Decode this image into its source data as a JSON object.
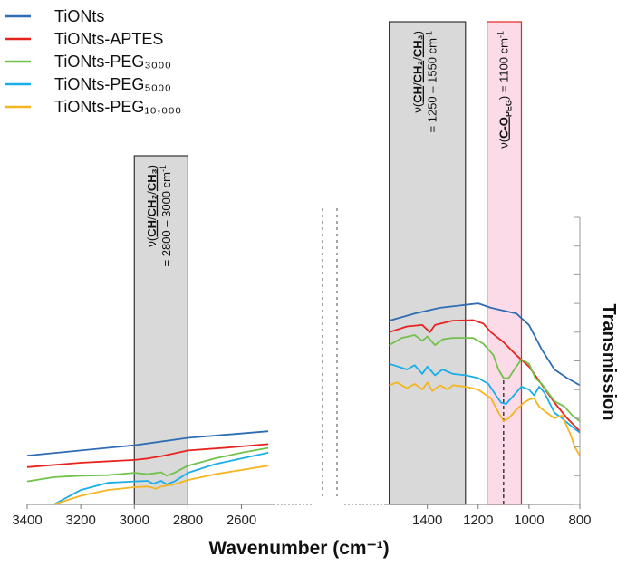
{
  "chart_data": {
    "type": "line",
    "title": "",
    "xlabel": "Wavenumber (cm⁻¹)",
    "ylabel": "Transmission",
    "x_axis_reversed": true,
    "x_axis_broken": true,
    "panels": [
      {
        "name": "left",
        "xlim": [
          3400,
          2480
        ],
        "xticks": [
          3400,
          3200,
          3000,
          2800,
          2600
        ]
      },
      {
        "name": "right",
        "xlim": [
          1570,
          800
        ],
        "xticks": [
          1400,
          1200,
          1000,
          800
        ]
      }
    ],
    "series": [
      {
        "name": "TiONts",
        "color": "#2e6db4",
        "left": [
          [
            3400,
            0.17
          ],
          [
            3200,
            0.188
          ],
          [
            3000,
            0.206
          ],
          [
            2800,
            0.232
          ],
          [
            2500,
            0.255
          ]
        ],
        "right": [
          [
            1550,
            0.64
          ],
          [
            1450,
            0.665
          ],
          [
            1350,
            0.685
          ],
          [
            1250,
            0.695
          ],
          [
            1200,
            0.7
          ],
          [
            1150,
            0.685
          ],
          [
            1050,
            0.665
          ],
          [
            1000,
            0.625
          ],
          [
            950,
            0.54
          ],
          [
            900,
            0.47
          ],
          [
            850,
            0.44
          ],
          [
            800,
            0.415
          ]
        ]
      },
      {
        "name": "TiONts-APTES",
        "color": "#e8231f",
        "left": [
          [
            3400,
            0.13
          ],
          [
            3200,
            0.145
          ],
          [
            3000,
            0.155
          ],
          [
            2950,
            0.16
          ],
          [
            2900,
            0.168
          ],
          [
            2850,
            0.178
          ],
          [
            2800,
            0.188
          ],
          [
            2650,
            0.198
          ],
          [
            2500,
            0.21
          ]
        ],
        "right": [
          [
            1550,
            0.6
          ],
          [
            1480,
            0.62
          ],
          [
            1420,
            0.625
          ],
          [
            1390,
            0.6
          ],
          [
            1370,
            0.625
          ],
          [
            1300,
            0.64
          ],
          [
            1220,
            0.642
          ],
          [
            1180,
            0.63
          ],
          [
            1150,
            0.6
          ],
          [
            1100,
            0.565
          ],
          [
            1050,
            0.52
          ],
          [
            1000,
            0.48
          ],
          [
            960,
            0.43
          ],
          [
            900,
            0.355
          ],
          [
            850,
            0.3
          ],
          [
            800,
            0.255
          ]
        ]
      },
      {
        "name": "TiONts-PEG₃₀₀₀",
        "color": "#70c24a",
        "left": [
          [
            3400,
            0.08
          ],
          [
            3300,
            0.095
          ],
          [
            3200,
            0.1
          ],
          [
            3100,
            0.102
          ],
          [
            3000,
            0.11
          ],
          [
            2950,
            0.105
          ],
          [
            2900,
            0.112
          ],
          [
            2880,
            0.1
          ],
          [
            2850,
            0.11
          ],
          [
            2800,
            0.135
          ],
          [
            2700,
            0.16
          ],
          [
            2600,
            0.18
          ],
          [
            2500,
            0.197
          ]
        ],
        "right": [
          [
            1550,
            0.555
          ],
          [
            1500,
            0.58
          ],
          [
            1450,
            0.59
          ],
          [
            1420,
            0.57
          ],
          [
            1400,
            0.585
          ],
          [
            1370,
            0.555
          ],
          [
            1340,
            0.575
          ],
          [
            1300,
            0.58
          ],
          [
            1220,
            0.58
          ],
          [
            1180,
            0.56
          ],
          [
            1140,
            0.52
          ],
          [
            1120,
            0.47
          ],
          [
            1100,
            0.44
          ],
          [
            1080,
            0.44
          ],
          [
            1050,
            0.48
          ],
          [
            1030,
            0.505
          ],
          [
            1000,
            0.49
          ],
          [
            975,
            0.44
          ],
          [
            950,
            0.42
          ],
          [
            900,
            0.36
          ],
          [
            860,
            0.34
          ],
          [
            830,
            0.31
          ],
          [
            800,
            0.29
          ]
        ]
      },
      {
        "name": "TiONts-PEG₅₀₀₀",
        "color": "#1aaee8",
        "left": [
          [
            3300,
            0.0
          ],
          [
            3200,
            0.05
          ],
          [
            3100,
            0.075
          ],
          [
            3000,
            0.08
          ],
          [
            2950,
            0.082
          ],
          [
            2930,
            0.072
          ],
          [
            2900,
            0.082
          ],
          [
            2880,
            0.07
          ],
          [
            2850,
            0.08
          ],
          [
            2800,
            0.11
          ],
          [
            2700,
            0.14
          ],
          [
            2600,
            0.16
          ],
          [
            2500,
            0.18
          ]
        ],
        "right": [
          [
            1550,
            0.49
          ],
          [
            1480,
            0.47
          ],
          [
            1450,
            0.485
          ],
          [
            1420,
            0.455
          ],
          [
            1400,
            0.48
          ],
          [
            1370,
            0.45
          ],
          [
            1340,
            0.47
          ],
          [
            1300,
            0.455
          ],
          [
            1250,
            0.45
          ],
          [
            1200,
            0.44
          ],
          [
            1160,
            0.42
          ],
          [
            1130,
            0.38
          ],
          [
            1110,
            0.355
          ],
          [
            1090,
            0.35
          ],
          [
            1060,
            0.38
          ],
          [
            1030,
            0.41
          ],
          [
            1000,
            0.4
          ],
          [
            980,
            0.38
          ],
          [
            960,
            0.41
          ],
          [
            940,
            0.39
          ],
          [
            900,
            0.32
          ],
          [
            870,
            0.3
          ],
          [
            830,
            0.27
          ],
          [
            800,
            0.25
          ]
        ]
      },
      {
        "name": "TiONts-PEG₁₀,₀₀₀",
        "color": "#f5b521",
        "left": [
          [
            3300,
            0.0
          ],
          [
            3200,
            0.03
          ],
          [
            3100,
            0.05
          ],
          [
            3000,
            0.06
          ],
          [
            2950,
            0.062
          ],
          [
            2920,
            0.055
          ],
          [
            2900,
            0.062
          ],
          [
            2850,
            0.07
          ],
          [
            2800,
            0.085
          ],
          [
            2700,
            0.105
          ],
          [
            2600,
            0.12
          ],
          [
            2500,
            0.135
          ]
        ],
        "right": [
          [
            1550,
            0.415
          ],
          [
            1520,
            0.425
          ],
          [
            1480,
            0.405
          ],
          [
            1450,
            0.42
          ],
          [
            1420,
            0.4
          ],
          [
            1400,
            0.425
          ],
          [
            1380,
            0.395
          ],
          [
            1350,
            0.415
          ],
          [
            1320,
            0.4
          ],
          [
            1300,
            0.415
          ],
          [
            1250,
            0.41
          ],
          [
            1200,
            0.4
          ],
          [
            1150,
            0.37
          ],
          [
            1120,
            0.32
          ],
          [
            1100,
            0.29
          ],
          [
            1080,
            0.3
          ],
          [
            1050,
            0.33
          ],
          [
            1020,
            0.355
          ],
          [
            1000,
            0.365
          ],
          [
            980,
            0.37
          ],
          [
            960,
            0.34
          ],
          [
            930,
            0.32
          ],
          [
            900,
            0.3
          ],
          [
            870,
            0.31
          ],
          [
            840,
            0.25
          ],
          [
            820,
            0.2
          ],
          [
            800,
            0.17
          ]
        ]
      }
    ],
    "regions": [
      {
        "panel": "left",
        "from": 3000,
        "to": 2800,
        "fill": "#d9d9d9",
        "stroke": "#333333",
        "label_nu": "ν(",
        "label_groups": [
          "CH",
          "/",
          "CH",
          "₂",
          "/",
          "CH",
          "₃",
          ")"
        ],
        "label_range": "= 2800 – 3000 cm",
        "label_unit_sup": "-1"
      },
      {
        "panel": "right",
        "from": 1550,
        "to": 1250,
        "fill": "#d9d9d9",
        "stroke": "#333333",
        "label_nu": "ν(",
        "label_groups": [
          "CH",
          "/",
          "CH",
          "₂",
          "/",
          "CH",
          "₃",
          ")"
        ],
        "label_range": "= 1250 – 1550 cm",
        "label_unit_sup": "-1"
      },
      {
        "panel": "right",
        "from": 1165,
        "to": 1030,
        "fill": "#fbdbe8",
        "stroke": "#e8231f",
        "label_nu": "ν(",
        "label_main": "C-O",
        "label_sub": "PEG",
        "label_rest": ") = 1100 cm",
        "label_unit_sup": "-1",
        "marker_x": 1100
      }
    ],
    "legend": {
      "position": "top-left"
    },
    "grid": false
  }
}
